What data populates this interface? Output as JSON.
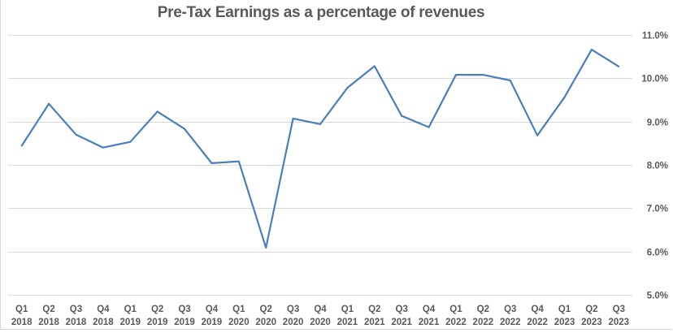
{
  "chart_data": {
    "type": "line",
    "title": "Pre-Tax Earnings as a percentage of revenues",
    "xlabel": "",
    "ylabel": "",
    "ylim": [
      5.0,
      11.0
    ],
    "y_ticks": [
      "5.0%",
      "6.0%",
      "7.0%",
      "8.0%",
      "9.0%",
      "10.0%",
      "11.0%"
    ],
    "y_tick_values": [
      5,
      6,
      7,
      8,
      9,
      10,
      11
    ],
    "y_axis_position": "right",
    "grid": true,
    "legend": "none",
    "categories": [
      [
        "Q1",
        "2018"
      ],
      [
        "Q2",
        "2018"
      ],
      [
        "Q3",
        "2018"
      ],
      [
        "Q4",
        "2018"
      ],
      [
        "Q1",
        "2019"
      ],
      [
        "Q2",
        "2019"
      ],
      [
        "Q3",
        "2019"
      ],
      [
        "Q4",
        "2019"
      ],
      [
        "Q1",
        "2020"
      ],
      [
        "Q2",
        "2020"
      ],
      [
        "Q3",
        "2020"
      ],
      [
        "Q4",
        "2020"
      ],
      [
        "Q1",
        "2021"
      ],
      [
        "Q2",
        "2021"
      ],
      [
        "Q3",
        "2021"
      ],
      [
        "Q4",
        "2021"
      ],
      [
        "Q1",
        "2022"
      ],
      [
        "Q2",
        "2022"
      ],
      [
        "Q3",
        "2022"
      ],
      [
        "Q4",
        "2022"
      ],
      [
        "Q1",
        "2023"
      ],
      [
        "Q2",
        "2023"
      ],
      [
        "Q3",
        "2023"
      ]
    ],
    "series": [
      {
        "name": "Pre-Tax Earnings %",
        "color": "#4a7ebb",
        "values": [
          8.44,
          9.41,
          8.7,
          8.4,
          8.53,
          9.23,
          8.83,
          8.04,
          8.08,
          6.09,
          9.07,
          8.94,
          9.78,
          10.28,
          9.13,
          8.87,
          10.08,
          10.08,
          9.95,
          8.68,
          9.56,
          10.66,
          10.27
        ]
      }
    ],
    "colors": {
      "line": "#4a7ebb",
      "grid": "#d9d9d9",
      "text": "#595959"
    }
  }
}
